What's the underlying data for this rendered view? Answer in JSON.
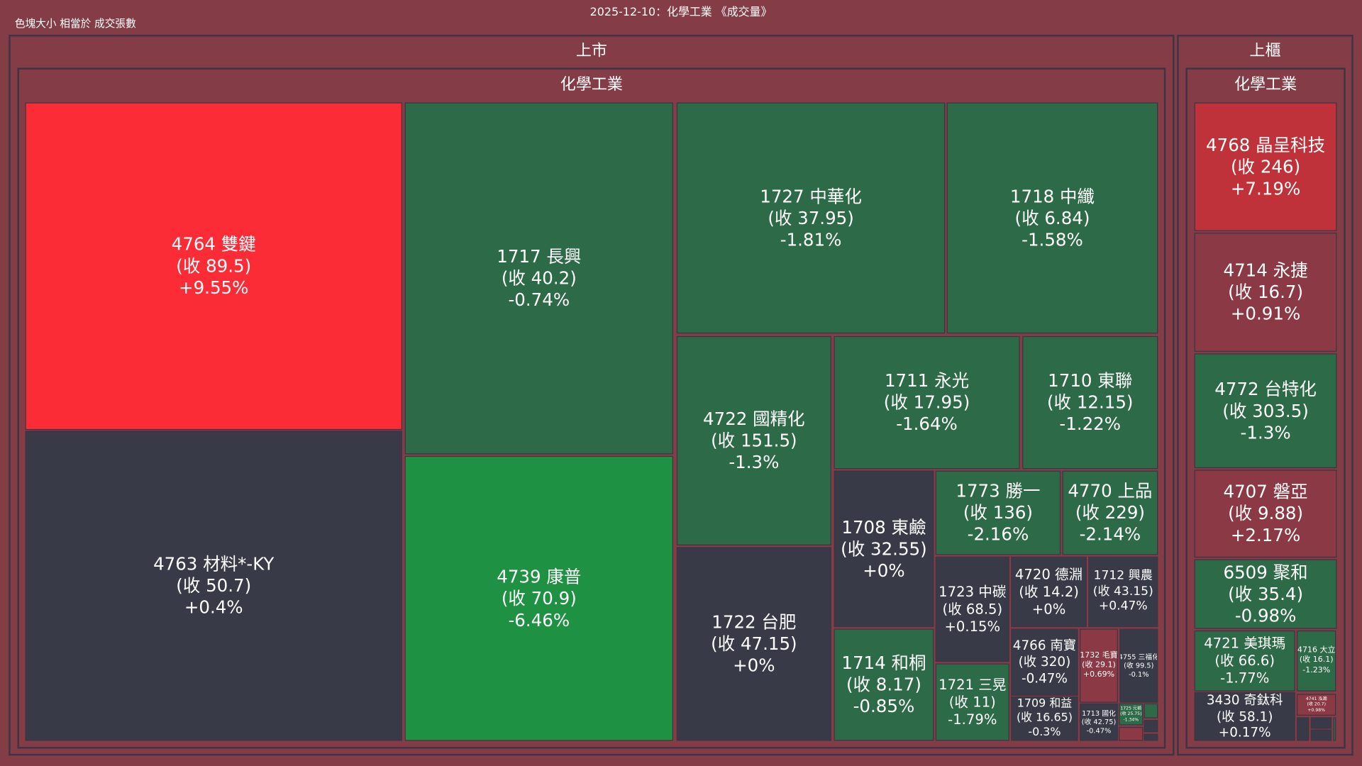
{
  "header": {
    "title": "2025-12-10：化學工業 《成交量》",
    "subtitle": "色塊大小 相當於 成交張數"
  },
  "colors": {
    "background": "#843c47",
    "border": "#3d3445",
    "red_strong": "#fb2c36",
    "red_mid": "#c0323a",
    "red_weak": "#8b3a45",
    "flat": "#383b47",
    "green_weak": "#2d6a47",
    "green_strong": "#1f9142"
  },
  "markets": [
    {
      "label": "上市",
      "sector": "化學工業",
      "tiles": [
        {
          "label": "4764 雙鍵",
          "close": "(收 89.5)",
          "change": "+9.55%",
          "color": "red_strong"
        },
        {
          "label": "4763 材料*-KY",
          "close": "(收 50.7)",
          "change": "+0.4%",
          "color": "flat"
        },
        {
          "label": "1717 長興",
          "close": "(收 40.2)",
          "change": "-0.74%",
          "color": "green_weak"
        },
        {
          "label": "4739 康普",
          "close": "(收 70.9)",
          "change": "-6.46%",
          "color": "green_strong"
        },
        {
          "label": "1727 中華化",
          "close": "(收 37.95)",
          "change": "-1.81%",
          "color": "green_weak"
        },
        {
          "label": "1718 中纖",
          "close": "(收 6.84)",
          "change": "-1.58%",
          "color": "green_weak"
        },
        {
          "label": "4722 國精化",
          "close": "(收 151.5)",
          "change": "-1.3%",
          "color": "green_weak"
        },
        {
          "label": "1722 台肥",
          "close": "(收 47.15)",
          "change": "+0%",
          "color": "flat"
        },
        {
          "label": "1711 永光",
          "close": "(收 17.95)",
          "change": "-1.64%",
          "color": "green_weak"
        },
        {
          "label": "1710 東聯",
          "close": "(收 12.15)",
          "change": "-1.22%",
          "color": "green_weak"
        },
        {
          "label": "1708 東鹼",
          "close": "(收 32.55)",
          "change": "+0%",
          "color": "flat"
        },
        {
          "label": "1714 和桐",
          "close": "(收 8.17)",
          "change": "-0.85%",
          "color": "green_weak"
        },
        {
          "label": "1773 勝一",
          "close": "(收 136)",
          "change": "-2.16%",
          "color": "green_weak"
        },
        {
          "label": "4770 上品",
          "close": "(收 229)",
          "change": "-2.14%",
          "color": "green_weak"
        },
        {
          "label": "1723 中碳",
          "close": "(收 68.5)",
          "change": "+0.15%",
          "color": "flat"
        },
        {
          "label": "1721 三晃",
          "close": "(收 11)",
          "change": "-1.79%",
          "color": "green_weak"
        },
        {
          "label": "4720 德淵",
          "close": "(收 14.2)",
          "change": "+0%",
          "color": "flat"
        },
        {
          "label": "1712 興農",
          "close": "(收 43.15)",
          "change": "+0.47%",
          "color": "flat"
        },
        {
          "label": "4766 南寶",
          "close": "(收 320)",
          "change": "-0.47%",
          "color": "flat"
        },
        {
          "label": "1709 和益",
          "close": "(收 16.65)",
          "change": "-0.3%",
          "color": "flat"
        },
        {
          "label": "1732 毛寶",
          "close": "(收 29.1)",
          "change": "+0.69%",
          "color": "red_weak"
        },
        {
          "label": "4755 三福化",
          "close": "(收 99.5)",
          "change": "-0.1%",
          "color": "flat"
        },
        {
          "label": "1713 國化",
          "close": "(收 42.75)",
          "change": "-0.47%",
          "color": "flat"
        },
        {
          "label": "1725 元禎",
          "close": "(收 25.75)",
          "change": "-1.34%",
          "color": "green_weak"
        },
        {
          "label": "",
          "close": "",
          "change": "",
          "color": "red_weak"
        },
        {
          "label": "",
          "close": "",
          "change": "",
          "color": "green_weak"
        },
        {
          "label": "",
          "close": "",
          "change": "",
          "color": "flat"
        },
        {
          "label": "",
          "close": "",
          "change": "",
          "color": "flat"
        }
      ]
    },
    {
      "label": "上櫃",
      "sector": "化學工業",
      "tiles": [
        {
          "label": "4768 晶呈科技",
          "close": "(收 246)",
          "change": "+7.19%",
          "color": "red_mid"
        },
        {
          "label": "4714 永捷",
          "close": "(收 16.7)",
          "change": "+0.91%",
          "color": "red_weak"
        },
        {
          "label": "4772 台特化",
          "close": "(收 303.5)",
          "change": "-1.3%",
          "color": "green_weak"
        },
        {
          "label": "4707 磐亞",
          "close": "(收 9.88)",
          "change": "+2.17%",
          "color": "red_weak"
        },
        {
          "label": "6509 聚和",
          "close": "(收 35.4)",
          "change": "-0.98%",
          "color": "green_weak"
        },
        {
          "label": "4721 美琪瑪",
          "close": "(收 66.6)",
          "change": "-1.77%",
          "color": "green_weak"
        },
        {
          "label": "4716 大立",
          "close": "(收 16.1)",
          "change": "-1.23%",
          "color": "green_weak"
        },
        {
          "label": "3430 奇鈦科",
          "close": "(收 58.1)",
          "change": "+0.17%",
          "color": "flat"
        },
        {
          "label": "4741 泓瀚",
          "close": "(收 20.7)",
          "change": "+0.98%",
          "color": "red_weak"
        },
        {
          "label": "",
          "close": "",
          "change": "",
          "color": "flat"
        },
        {
          "label": "",
          "close": "",
          "change": "",
          "color": "flat"
        },
        {
          "label": "",
          "close": "",
          "change": "",
          "color": "flat"
        },
        {
          "label": "",
          "close": "",
          "change": "",
          "color": "green_weak"
        }
      ]
    }
  ]
}
